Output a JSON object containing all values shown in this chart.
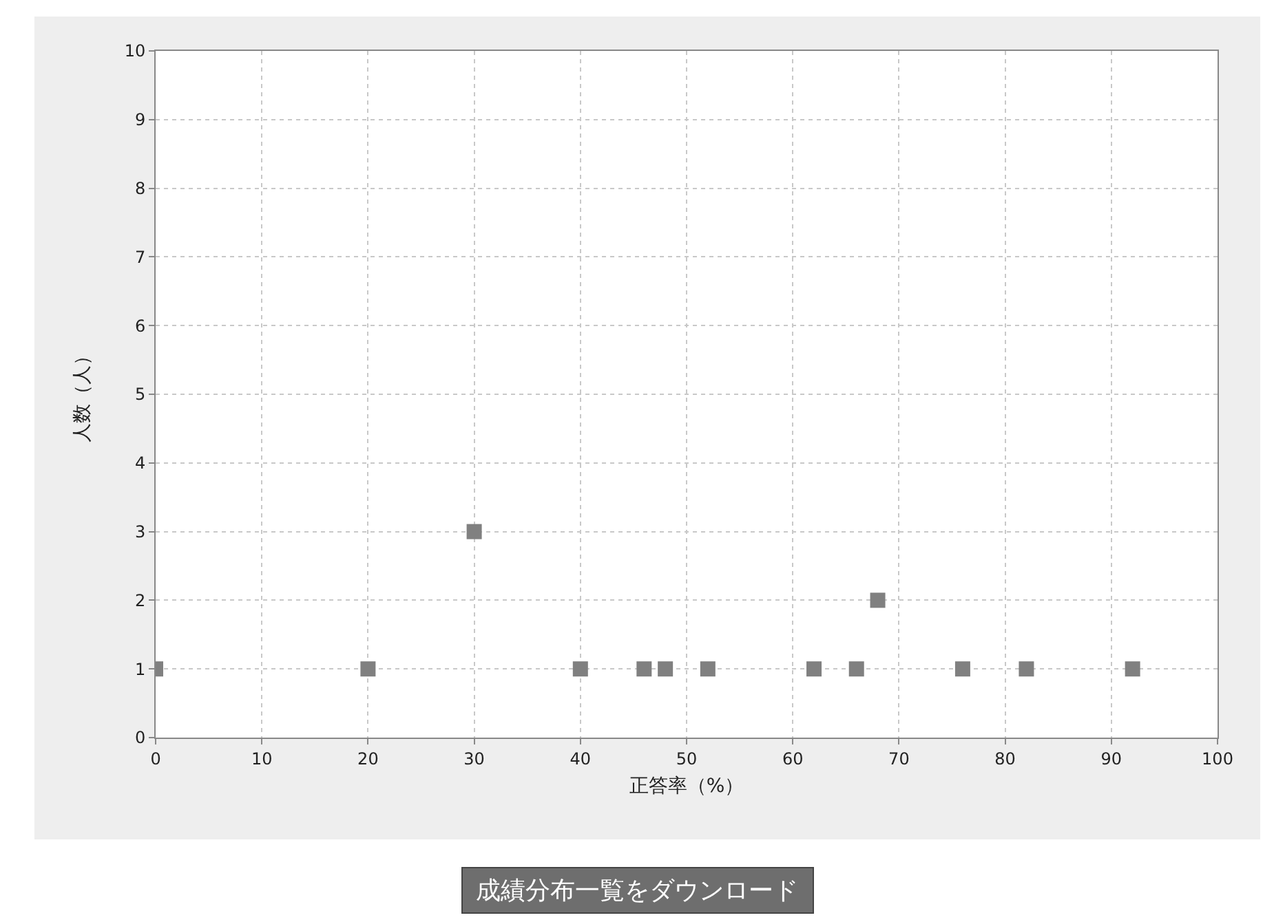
{
  "chart_data": {
    "type": "scatter",
    "xlabel": "正答率（%）",
    "ylabel": "人数（人）",
    "x": [
      0,
      20,
      30,
      40,
      46,
      48,
      52,
      62,
      66,
      68,
      76,
      82,
      92
    ],
    "values": [
      1,
      1,
      3,
      1,
      1,
      1,
      1,
      1,
      1,
      2,
      1,
      1,
      1
    ],
    "color": "#808080",
    "marker": "square",
    "xlim": [
      0,
      100
    ],
    "xticks": [
      0,
      10,
      20,
      30,
      40,
      50,
      60,
      70,
      80,
      90,
      100
    ],
    "ylim": [
      0,
      10
    ],
    "yticks": [
      0,
      1,
      2,
      3,
      4,
      5,
      6,
      7,
      8,
      9,
      10
    ],
    "grid": true,
    "legend": false,
    "annotations": [
      "成績分布一覧をダウンロード"
    ]
  }
}
